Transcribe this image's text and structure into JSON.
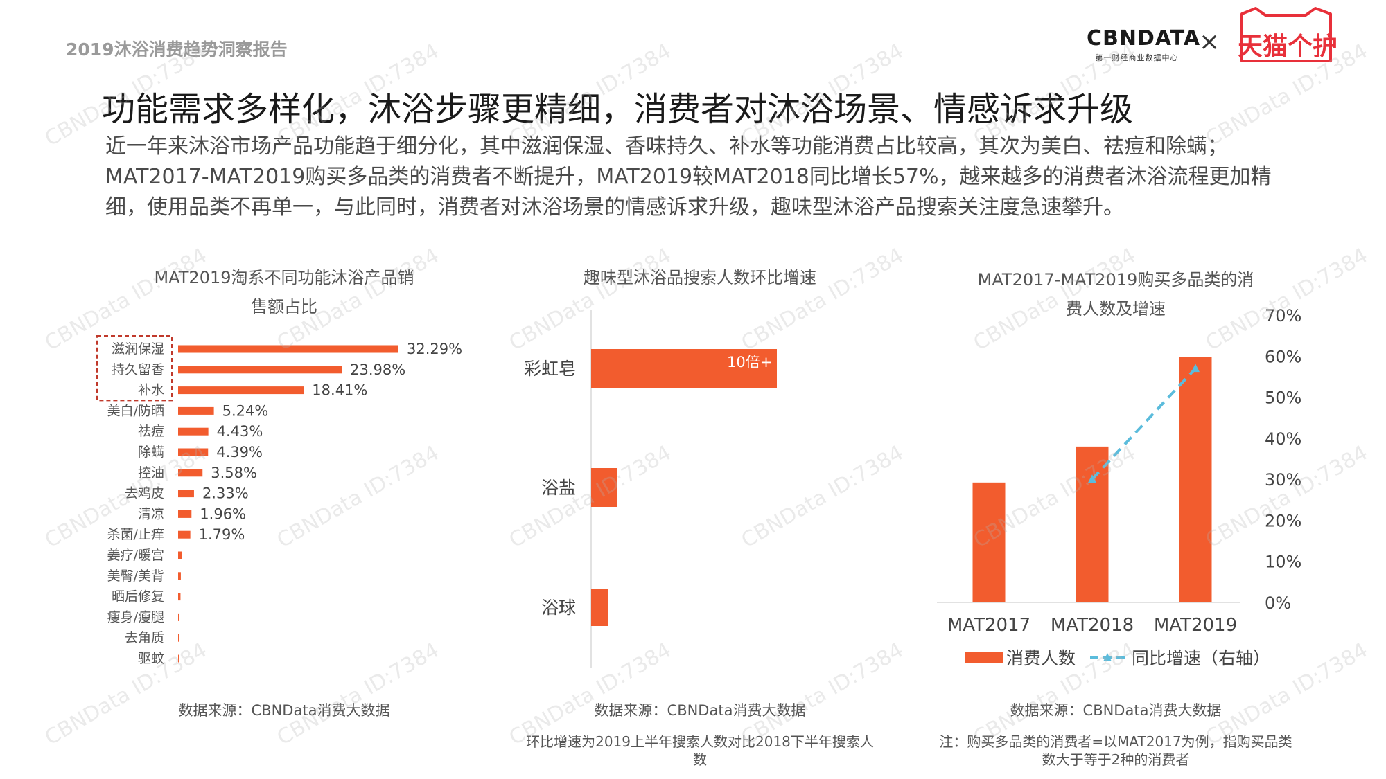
{
  "header": {
    "report_label": "2019沐浴消费趋势洞察报告",
    "logo_cbn": "CBNDATA",
    "logo_cbn_sub": "第一财经商业数据中心",
    "logo_times": "×",
    "logo_tmall": "天猫个护"
  },
  "title": "功能需求多样化，沐浴步骤更精细，消费者对沐浴场景、情感诉求升级",
  "summary": "近一年来沐浴市场产品功能趋于细分化，其中滋润保湿、香味持久、补水等功能消费占比较高，其次为美白、祛痘和除螨；MAT2017-MAT2019购买多品类的消费者不断提升，MAT2019较MAT2018同比增长57%，越来越多的消费者沐浴流程更加精细，使用品类不再单一，与此同时，消费者对沐浴场景的情感诉求升级，趣味型沐浴产品搜索关注度急速攀升。",
  "watermark": "CBNData ID:7384",
  "colors": {
    "bar": "#f25c2e",
    "line": "#5bbcdc",
    "highlight_box": "#c0392b"
  },
  "chart1": {
    "title_line1": "MAT2019淘系不同功能沐浴产品销",
    "title_line2": "售额占比",
    "source": "数据来源：CBNData消费大数据"
  },
  "chart2": {
    "title": "趣味型沐浴品搜索人数环比增速",
    "source": "数据来源：CBNData消费大数据",
    "note": "环比增速为2019上半年搜索人数对比2018下半年搜索人数"
  },
  "chart3": {
    "title_line1": "MAT2017-MAT2019购买多品类的消",
    "title_line2": "费人数及增速",
    "source": "数据来源：CBNData消费大数据",
    "note": "注：购买多品类的消费者=以MAT2017为例，指购买品类数大于等于2种的消费者"
  },
  "chart_data": [
    {
      "type": "bar",
      "orientation": "horizontal",
      "title": "MAT2019淘系不同功能沐浴产品销售额占比",
      "categories": [
        "滋润保湿",
        "持久留香",
        "补水",
        "美白/防晒",
        "祛痘",
        "除螨",
        "控油",
        "去鸡皮",
        "清凉",
        "杀菌/止痒",
        "姜疗/暖宫",
        "美臀/美背",
        "晒后修复",
        "瘦身/瘦腿",
        "去角质",
        "驱蚊"
      ],
      "values": [
        32.29,
        23.98,
        18.41,
        5.24,
        4.43,
        4.39,
        3.58,
        2.33,
        1.96,
        1.79,
        0.6,
        0.4,
        0.35,
        0.2,
        0.15,
        0.1
      ],
      "value_labels": [
        "32.29%",
        "23.98%",
        "18.41%",
        "5.24%",
        "4.43%",
        "4.39%",
        "3.58%",
        "2.33%",
        "1.96%",
        "1.79%",
        "",
        "",
        "",
        "",
        "",
        ""
      ],
      "highlighted": [
        "滋润保湿",
        "持久留香",
        "补水"
      ],
      "unit": "%"
    },
    {
      "type": "bar",
      "orientation": "horizontal",
      "title": "趣味型沐浴品搜索人数环比增速",
      "categories": [
        "彩虹皂",
        "浴盐",
        "浴球"
      ],
      "values": [
        10,
        1.4,
        0.9
      ],
      "value_labels": [
        "10倍+",
        "",
        ""
      ],
      "unit": "倍"
    },
    {
      "type": "bar",
      "title": "MAT2017-MAT2019购买多品类的消费人数及增速",
      "categories": [
        "MAT2017",
        "MAT2018",
        "MAT2019"
      ],
      "series": [
        {
          "name": "消费人数",
          "type": "bar",
          "values": [
            1.0,
            1.3,
            2.05
          ]
        },
        {
          "name": "同比增速（右轴）",
          "type": "line",
          "axis": "right",
          "values": [
            null,
            30,
            57
          ]
        }
      ],
      "y2lim": [
        0,
        70
      ],
      "y2ticks": [
        "0%",
        "10%",
        "20%",
        "30%",
        "40%",
        "50%",
        "60%",
        "70%"
      ],
      "legend_placement": "bottom"
    }
  ]
}
